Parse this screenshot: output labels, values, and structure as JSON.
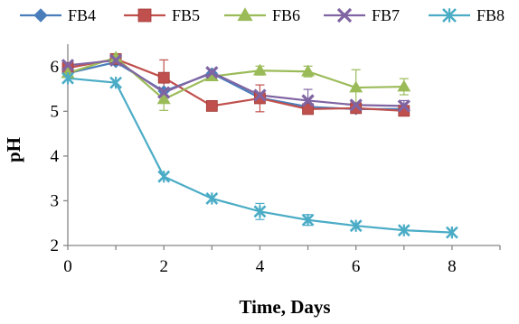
{
  "chart_data": {
    "type": "line",
    "title": "",
    "xlabel": "Time, Days",
    "ylabel": "pH",
    "xlim": [
      0,
      9
    ],
    "ylim": [
      2,
      6.5
    ],
    "xticks": [
      0,
      2,
      4,
      6,
      8
    ],
    "yticks": [
      2,
      3,
      4,
      5,
      6
    ],
    "grid": false,
    "legend_position": "top",
    "series": [
      {
        "name": "FB4",
        "color": "#4a7ebb",
        "marker": "diamond",
        "x": [
          0,
          1,
          2,
          3,
          4,
          5,
          6,
          7
        ],
        "y": [
          5.85,
          6.1,
          5.45,
          5.85,
          5.3,
          5.1,
          5.05,
          5.05
        ],
        "err": [
          0,
          0,
          0,
          0,
          0,
          0,
          0,
          0
        ]
      },
      {
        "name": "FB5",
        "color": "#c0504d",
        "marker": "square",
        "x": [
          0,
          1,
          2,
          3,
          4,
          5,
          6,
          7
        ],
        "y": [
          5.97,
          6.17,
          5.75,
          5.12,
          5.29,
          5.05,
          5.07,
          5.01
        ],
        "err": [
          0,
          0,
          0.4,
          0,
          0.3,
          0,
          0,
          0
        ]
      },
      {
        "name": "FB6",
        "color": "#9bbb59",
        "marker": "triangle",
        "x": [
          0,
          1,
          2,
          3,
          4,
          5,
          6,
          7
        ],
        "y": [
          5.85,
          6.2,
          5.27,
          5.78,
          5.91,
          5.89,
          5.53,
          5.55
        ],
        "err": [
          0,
          0,
          0.25,
          0,
          0.1,
          0.12,
          0.4,
          0.18
        ]
      },
      {
        "name": "FB7",
        "color": "#8064a2",
        "marker": "x",
        "x": [
          0,
          1,
          2,
          3,
          4,
          5,
          6,
          7
        ],
        "y": [
          6.03,
          6.14,
          5.42,
          5.87,
          5.36,
          5.24,
          5.14,
          5.12
        ],
        "err": [
          0,
          0,
          0,
          0,
          0,
          0.25,
          0,
          0.12
        ]
      },
      {
        "name": "FB8",
        "color": "#4bacc6",
        "marker": "star",
        "x": [
          0,
          1,
          2,
          3,
          4,
          5,
          6,
          7,
          8
        ],
        "y": [
          5.74,
          5.64,
          3.54,
          3.05,
          2.76,
          2.57,
          2.44,
          2.34,
          2.29
        ],
        "err": [
          0,
          0,
          0,
          0,
          0.18,
          0.12,
          0,
          0,
          0
        ]
      }
    ]
  }
}
